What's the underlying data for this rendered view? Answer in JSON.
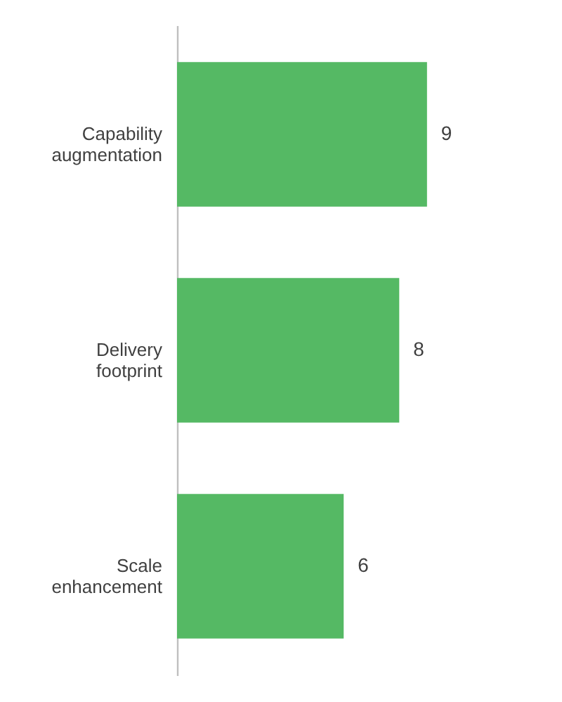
{
  "chart_data": {
    "type": "bar",
    "orientation": "horizontal",
    "categories": [
      "Capability augmentation",
      "Delivery footprint",
      "Scale enhancement"
    ],
    "values": [
      9,
      8,
      6
    ],
    "color": "#55b964",
    "data_labels": true
  }
}
